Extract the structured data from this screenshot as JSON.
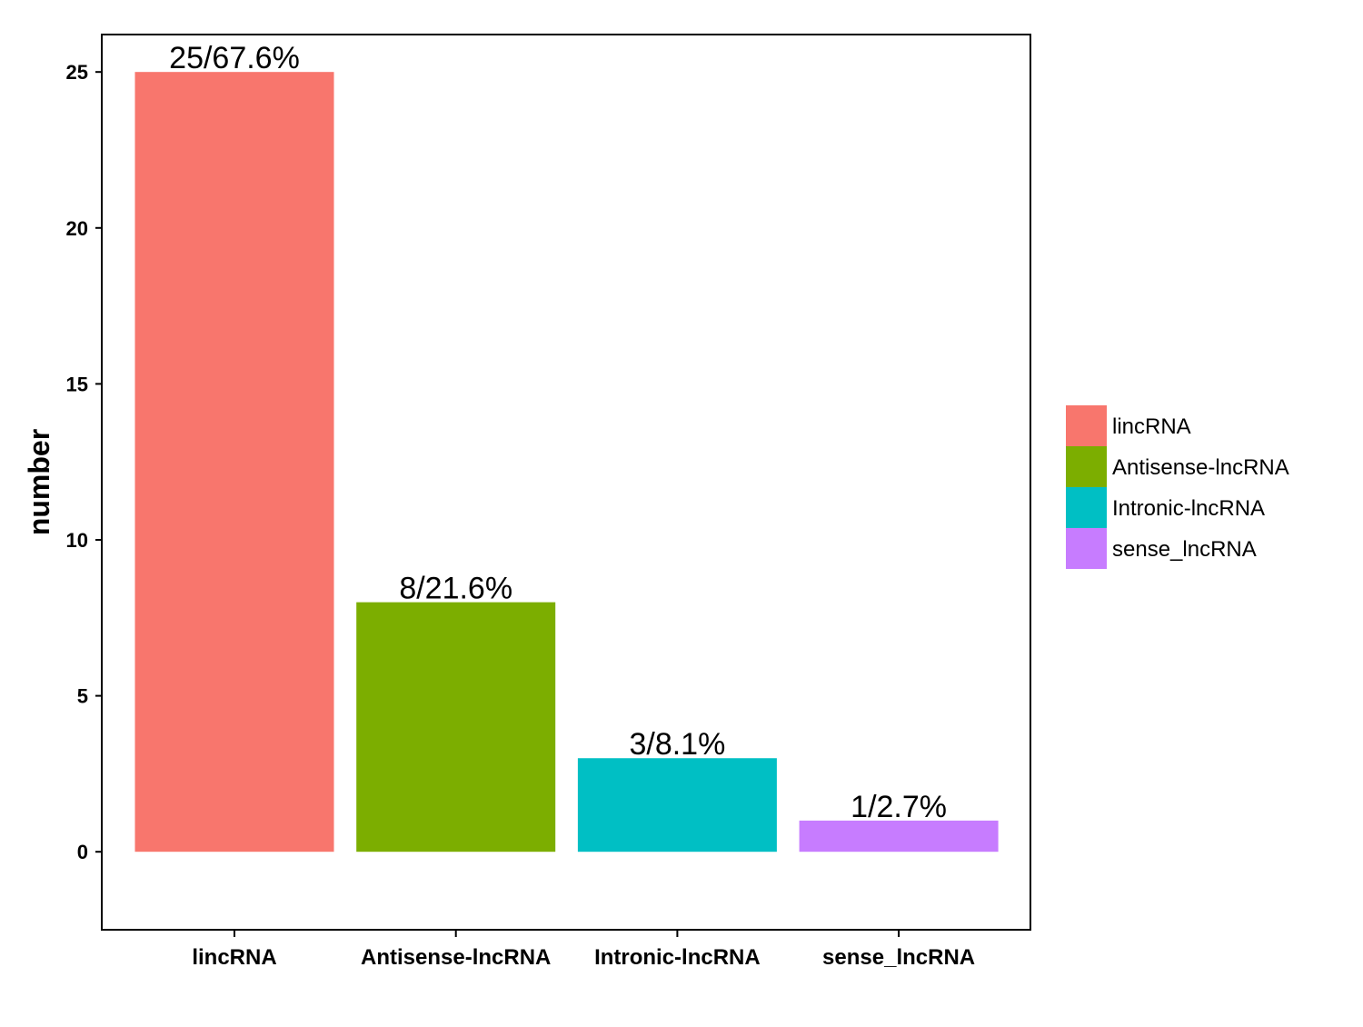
{
  "chart_data": {
    "type": "bar",
    "title": "",
    "xlabel": "",
    "ylabel": "number",
    "ylim": [
      -2.5,
      26.2
    ],
    "yticks": [
      0,
      5,
      10,
      15,
      20,
      25
    ],
    "categories": [
      "lincRNA",
      "Antisense-lncRNA",
      "Intronic-lncRNA",
      "sense_lncRNA"
    ],
    "values": [
      25,
      8,
      3,
      1
    ],
    "data_labels": [
      "25/67.6%",
      "8/21.6%",
      "3/8.1%",
      "1/2.7%"
    ],
    "colors": [
      "#F8766D",
      "#7CAE00",
      "#00BFC4",
      "#C77CFF"
    ],
    "grid": false,
    "legend": {
      "position": "right",
      "entries": [
        "lincRNA",
        "Antisense-lncRNA",
        "Intronic-lncRNA",
        "sense_lncRNA"
      ]
    }
  }
}
